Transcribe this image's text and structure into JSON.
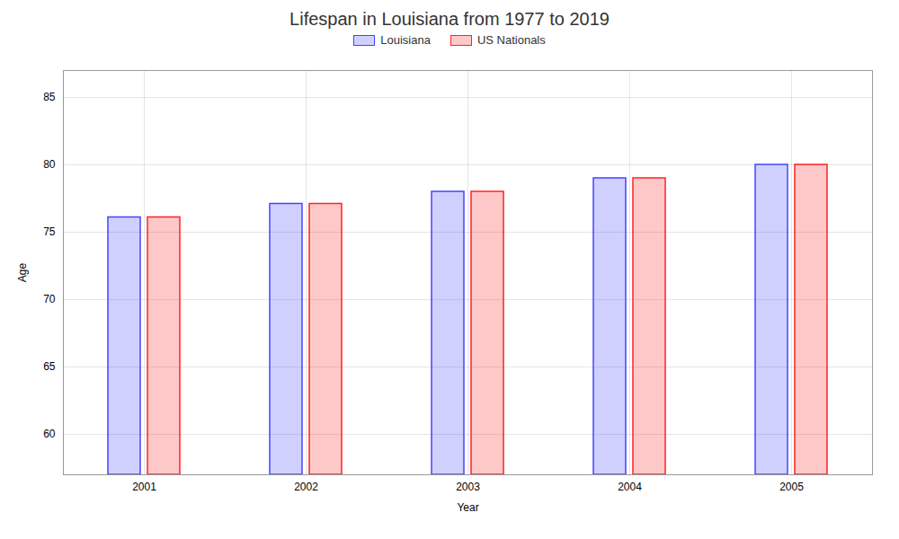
{
  "chart_data": {
    "type": "bar",
    "title": "Lifespan in Louisiana from 1977 to 2019",
    "x_label": "Year",
    "y_label": "Age",
    "categories": [
      "2001",
      "2002",
      "2003",
      "2004",
      "2005"
    ],
    "series": [
      {
        "name": "Louisiana",
        "color": "#4444ff",
        "values": [
          76.1,
          77.1,
          78.0,
          79.0,
          80.0
        ]
      },
      {
        "name": "US Nationals",
        "color": "#ff2222",
        "values": [
          76.1,
          77.1,
          78.0,
          79.0,
          80.0
        ]
      }
    ],
    "ylim": [
      57,
      87
    ],
    "yticks": [
      60,
      65,
      70,
      75,
      80,
      85
    ],
    "grid": true,
    "legend": "top"
  }
}
